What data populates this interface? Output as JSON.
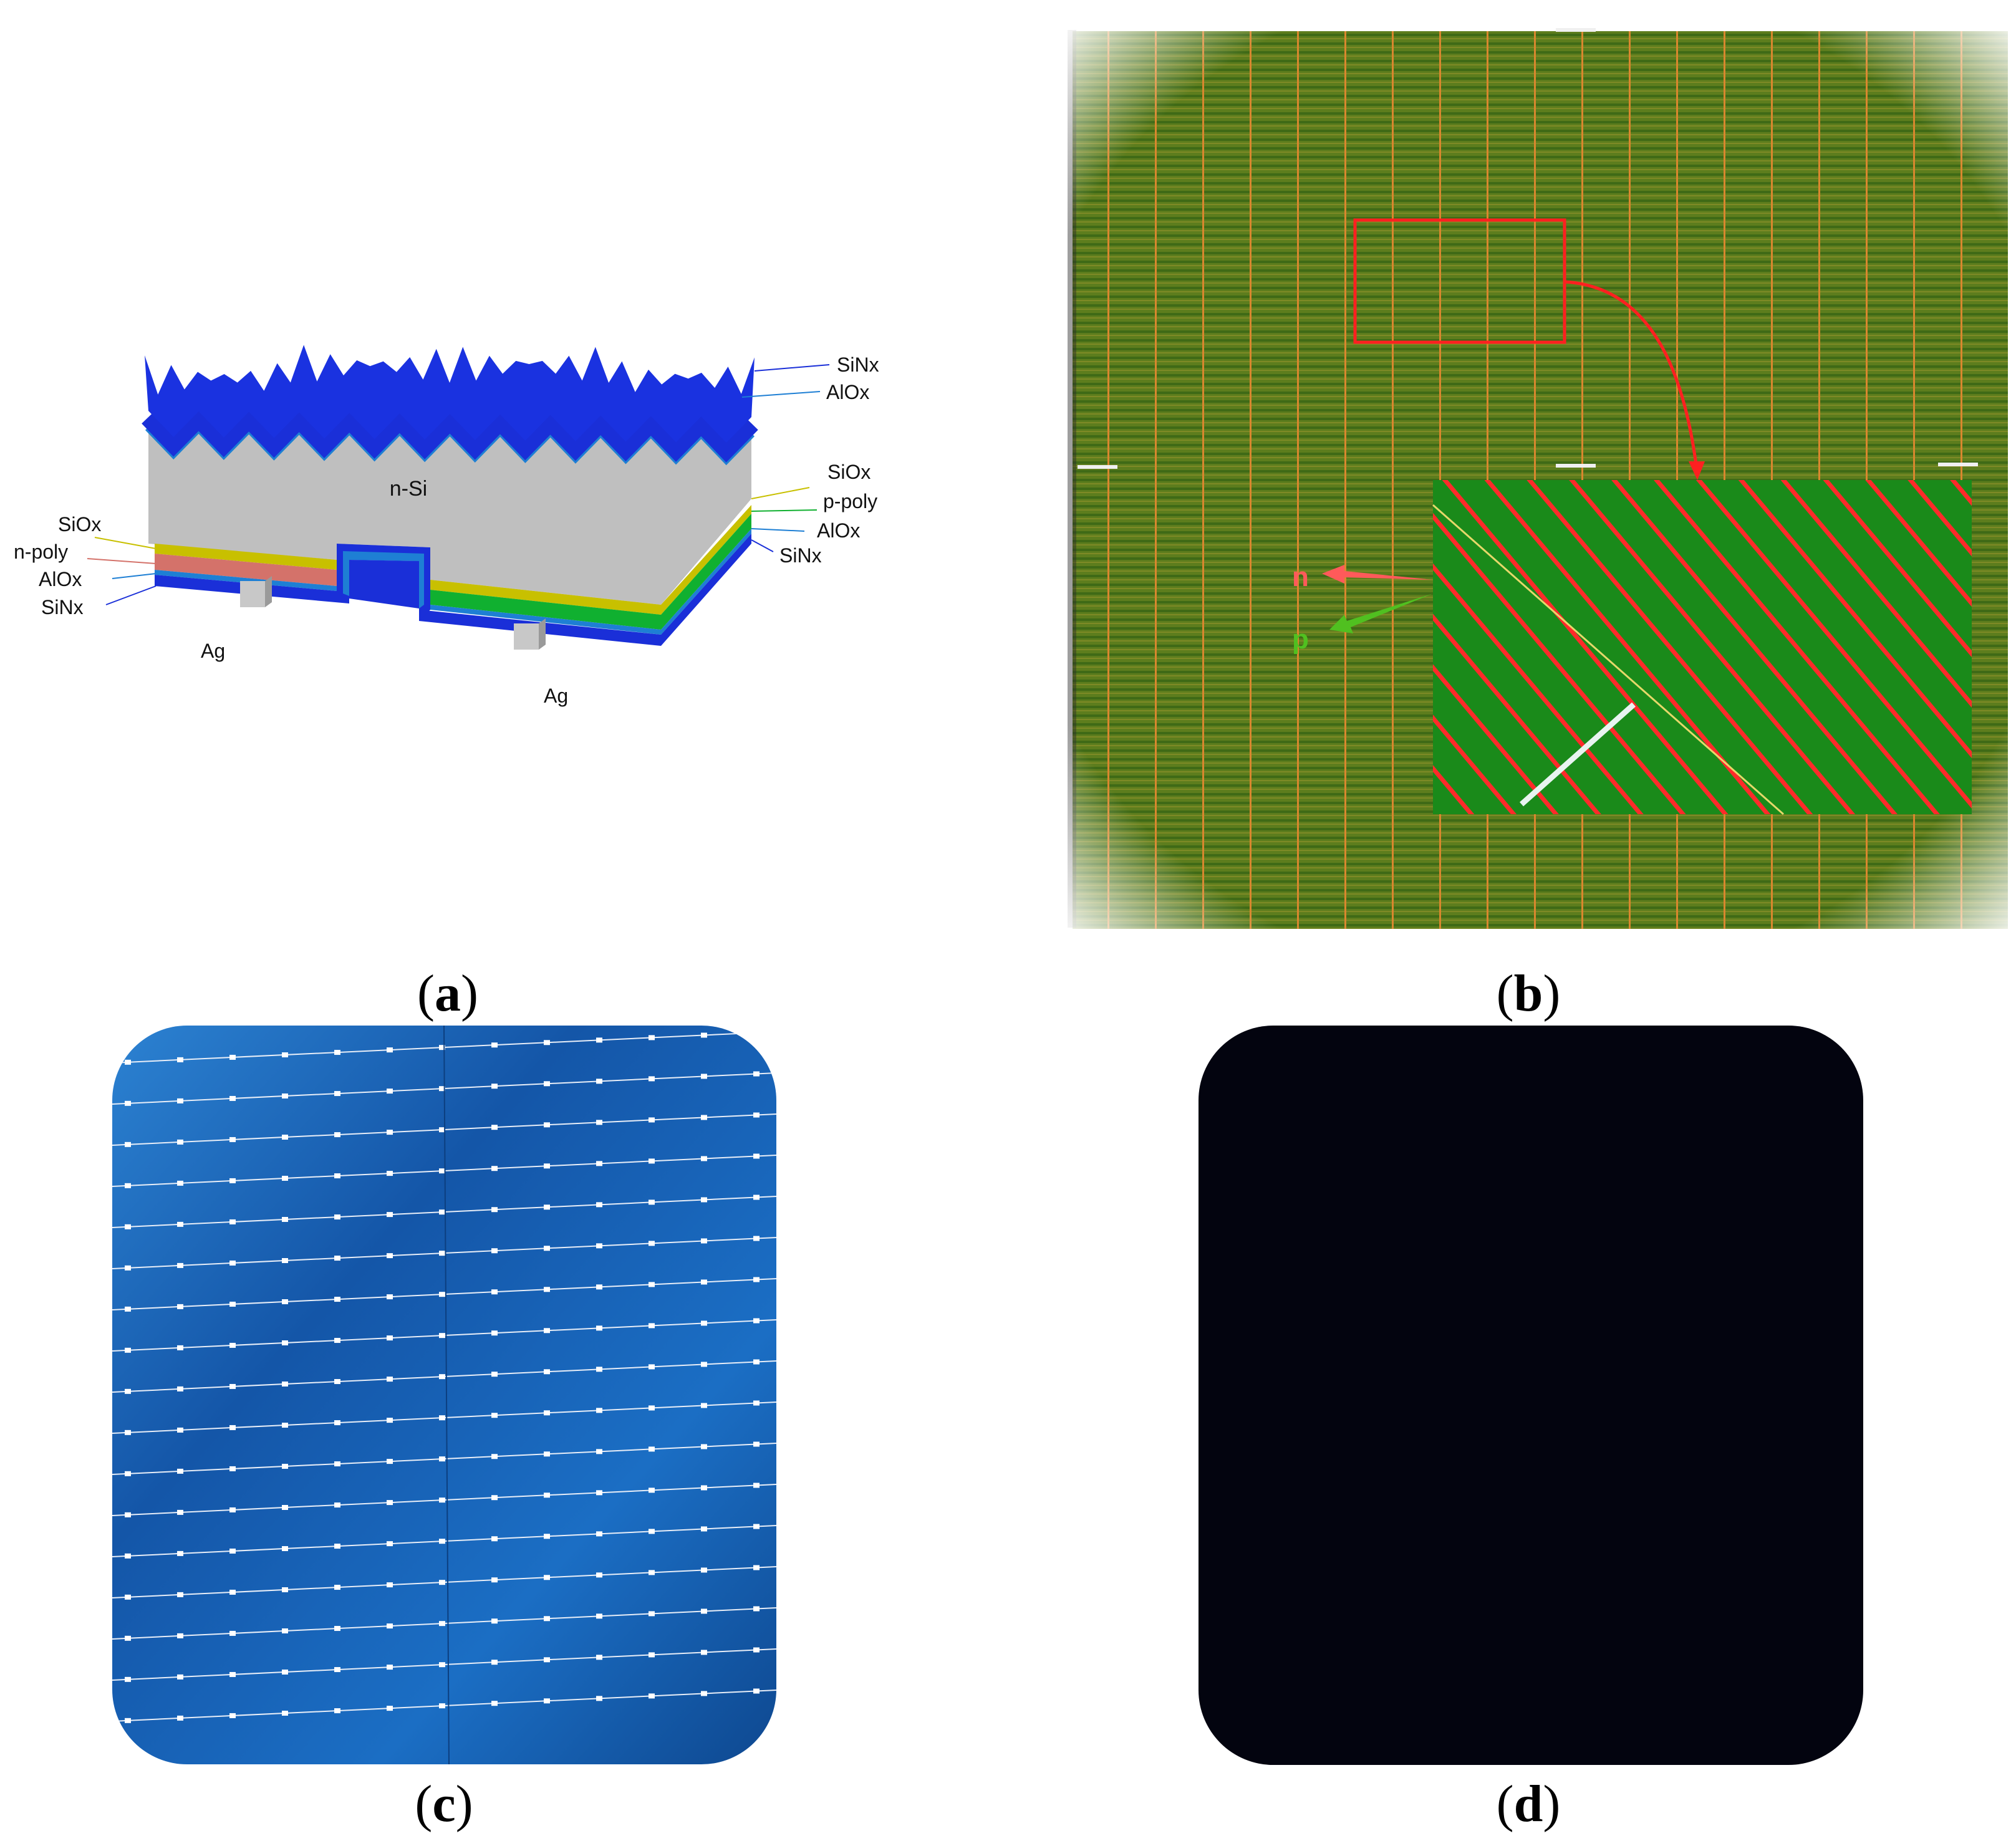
{
  "figure": {
    "panel_a": {
      "caption_letter": "a",
      "bulk_label": "n-Si",
      "front_labels": [
        "SiNx",
        "AlOx"
      ],
      "right_labels": [
        "SiOx",
        "p-poly",
        "AlOx",
        "SiNx"
      ],
      "left_labels": [
        "SiOx",
        "n-poly",
        "AlOx",
        "SiNx"
      ],
      "contact_labels": [
        "Ag",
        "Ag"
      ],
      "colors": {
        "sinx": "#1a2fd8",
        "alox": "#1e7fd4",
        "n_si": "#bfbfbf",
        "siox": "#c8c000",
        "n_poly": "#d4726a",
        "p_poly": "#10b030",
        "ag": "#c8c8c8"
      }
    },
    "panel_b": {
      "caption_letter": "b",
      "arrow_labels": [
        "n",
        "p"
      ],
      "colors": {
        "base": "#5a7a1c",
        "finger": "#e26a2a",
        "inset_green": "#1a8a1a",
        "inset_red": "#ff2a2a",
        "highlight": "#ff2020",
        "n_arrow": "#ff5a5a",
        "p_arrow": "#50c020"
      }
    },
    "panel_c": {
      "caption_letter": "c",
      "colors": {
        "wafer": "#1456a8",
        "wafer_light": "#2d7fd0",
        "busbar": "#e8eef8"
      }
    },
    "panel_d": {
      "caption_letter": "d",
      "colors": {
        "wafer": "#03040f"
      }
    }
  }
}
